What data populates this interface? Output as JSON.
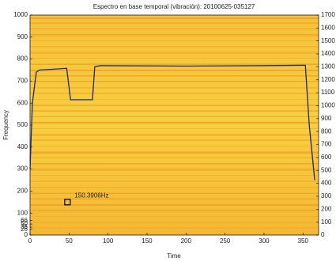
{
  "chart_data": {
    "type": "line",
    "title": "Espectro en base temporal (vibración): 20100625-035127",
    "x_label": "Time",
    "y_label": "Frequency",
    "xlim": [
      0,
      370
    ],
    "xticks": [
      0,
      50,
      100,
      150,
      200,
      250,
      300,
      350
    ],
    "ylim": [
      0,
      1000
    ],
    "yticks": [
      0,
      26,
      36,
      50,
      66,
      100,
      200,
      300,
      400,
      500,
      600,
      700,
      800,
      900,
      1000
    ],
    "y2lim": [
      0,
      1700
    ],
    "y2ticks": [
      0,
      100,
      200,
      300,
      400,
      500,
      600,
      700,
      800,
      900,
      1000,
      1100,
      1200,
      1300,
      1400,
      1500,
      1600,
      1700
    ],
    "series": [
      {
        "color": "#1a2a7a",
        "x": [
          0,
          3,
          8,
          12,
          47,
          49,
          52,
          80,
          83,
          90,
          200,
          300,
          353,
          358,
          365
        ],
        "values": [
          300,
          600,
          740,
          750,
          758,
          700,
          615,
          615,
          765,
          770,
          768,
          770,
          772,
          500,
          250
        ]
      }
    ],
    "marker": {
      "x": 48,
      "y": 150,
      "label": "150.3906Hz"
    }
  }
}
